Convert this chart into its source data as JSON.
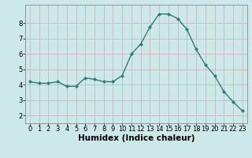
{
  "x": [
    0,
    1,
    2,
    3,
    4,
    5,
    6,
    7,
    8,
    9,
    10,
    11,
    12,
    13,
    14,
    15,
    16,
    17,
    18,
    19,
    20,
    21,
    22,
    23
  ],
  "y": [
    4.2,
    4.1,
    4.1,
    4.2,
    3.9,
    3.9,
    4.45,
    4.35,
    4.2,
    4.2,
    4.6,
    6.0,
    6.65,
    7.75,
    8.6,
    8.6,
    8.3,
    7.6,
    6.3,
    5.3,
    4.6,
    3.55,
    2.9,
    2.3
  ],
  "xlabel": "Humidex (Indice chaleur)",
  "ylim": [
    1.5,
    9.2
  ],
  "xlim": [
    -0.5,
    23.5
  ],
  "xticks": [
    0,
    1,
    2,
    3,
    4,
    5,
    6,
    7,
    8,
    9,
    10,
    11,
    12,
    13,
    14,
    15,
    16,
    17,
    18,
    19,
    20,
    21,
    22,
    23
  ],
  "yticks": [
    2,
    3,
    4,
    5,
    6,
    7,
    8
  ],
  "line_color": "#2e7d6e",
  "marker_color": "#2e7d6e",
  "bg_color": "#cce8e8",
  "grid_color": "#c8b8b8",
  "spine_color": "#888888",
  "tick_label_fontsize": 6,
  "xlabel_fontsize": 7.5
}
